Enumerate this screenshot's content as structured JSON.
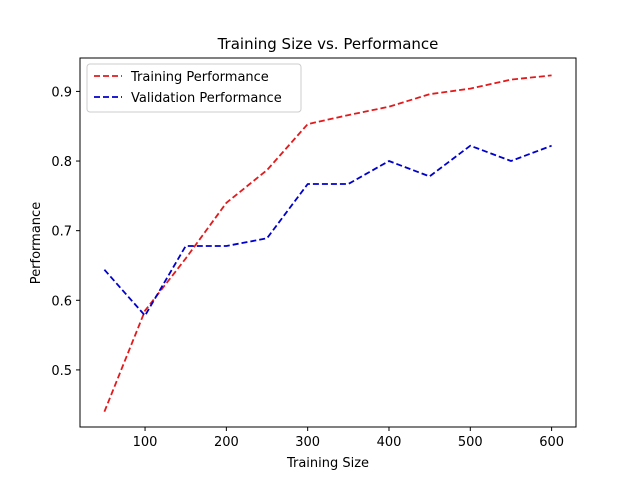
{
  "chart_data": {
    "type": "line",
    "title": "Training Size vs. Performance",
    "xlabel": "Training Size",
    "ylabel": "Performance",
    "xlim": [
      20,
      630
    ],
    "ylim": [
      0.418,
      0.948
    ],
    "xticks": [
      100,
      200,
      300,
      400,
      500,
      600
    ],
    "yticks": [
      0.5,
      0.6,
      0.7,
      0.8,
      0.9
    ],
    "x": [
      50,
      100,
      150,
      200,
      250,
      300,
      350,
      400,
      450,
      500,
      550,
      600
    ],
    "grid": false,
    "legend_position": "top-left",
    "series": [
      {
        "name": "Training Performance",
        "color": "#e31a1c",
        "style": "dashed",
        "values": [
          0.44,
          0.585,
          0.66,
          0.74,
          0.787,
          0.853,
          0.866,
          0.878,
          0.896,
          0.904,
          0.917,
          0.923
        ]
      },
      {
        "name": "Validation Performance",
        "color": "#0000cc",
        "style": "dashed",
        "values": [
          0.644,
          0.578,
          0.678,
          0.678,
          0.689,
          0.767,
          0.767,
          0.8,
          0.778,
          0.822,
          0.8,
          0.822
        ]
      }
    ]
  }
}
